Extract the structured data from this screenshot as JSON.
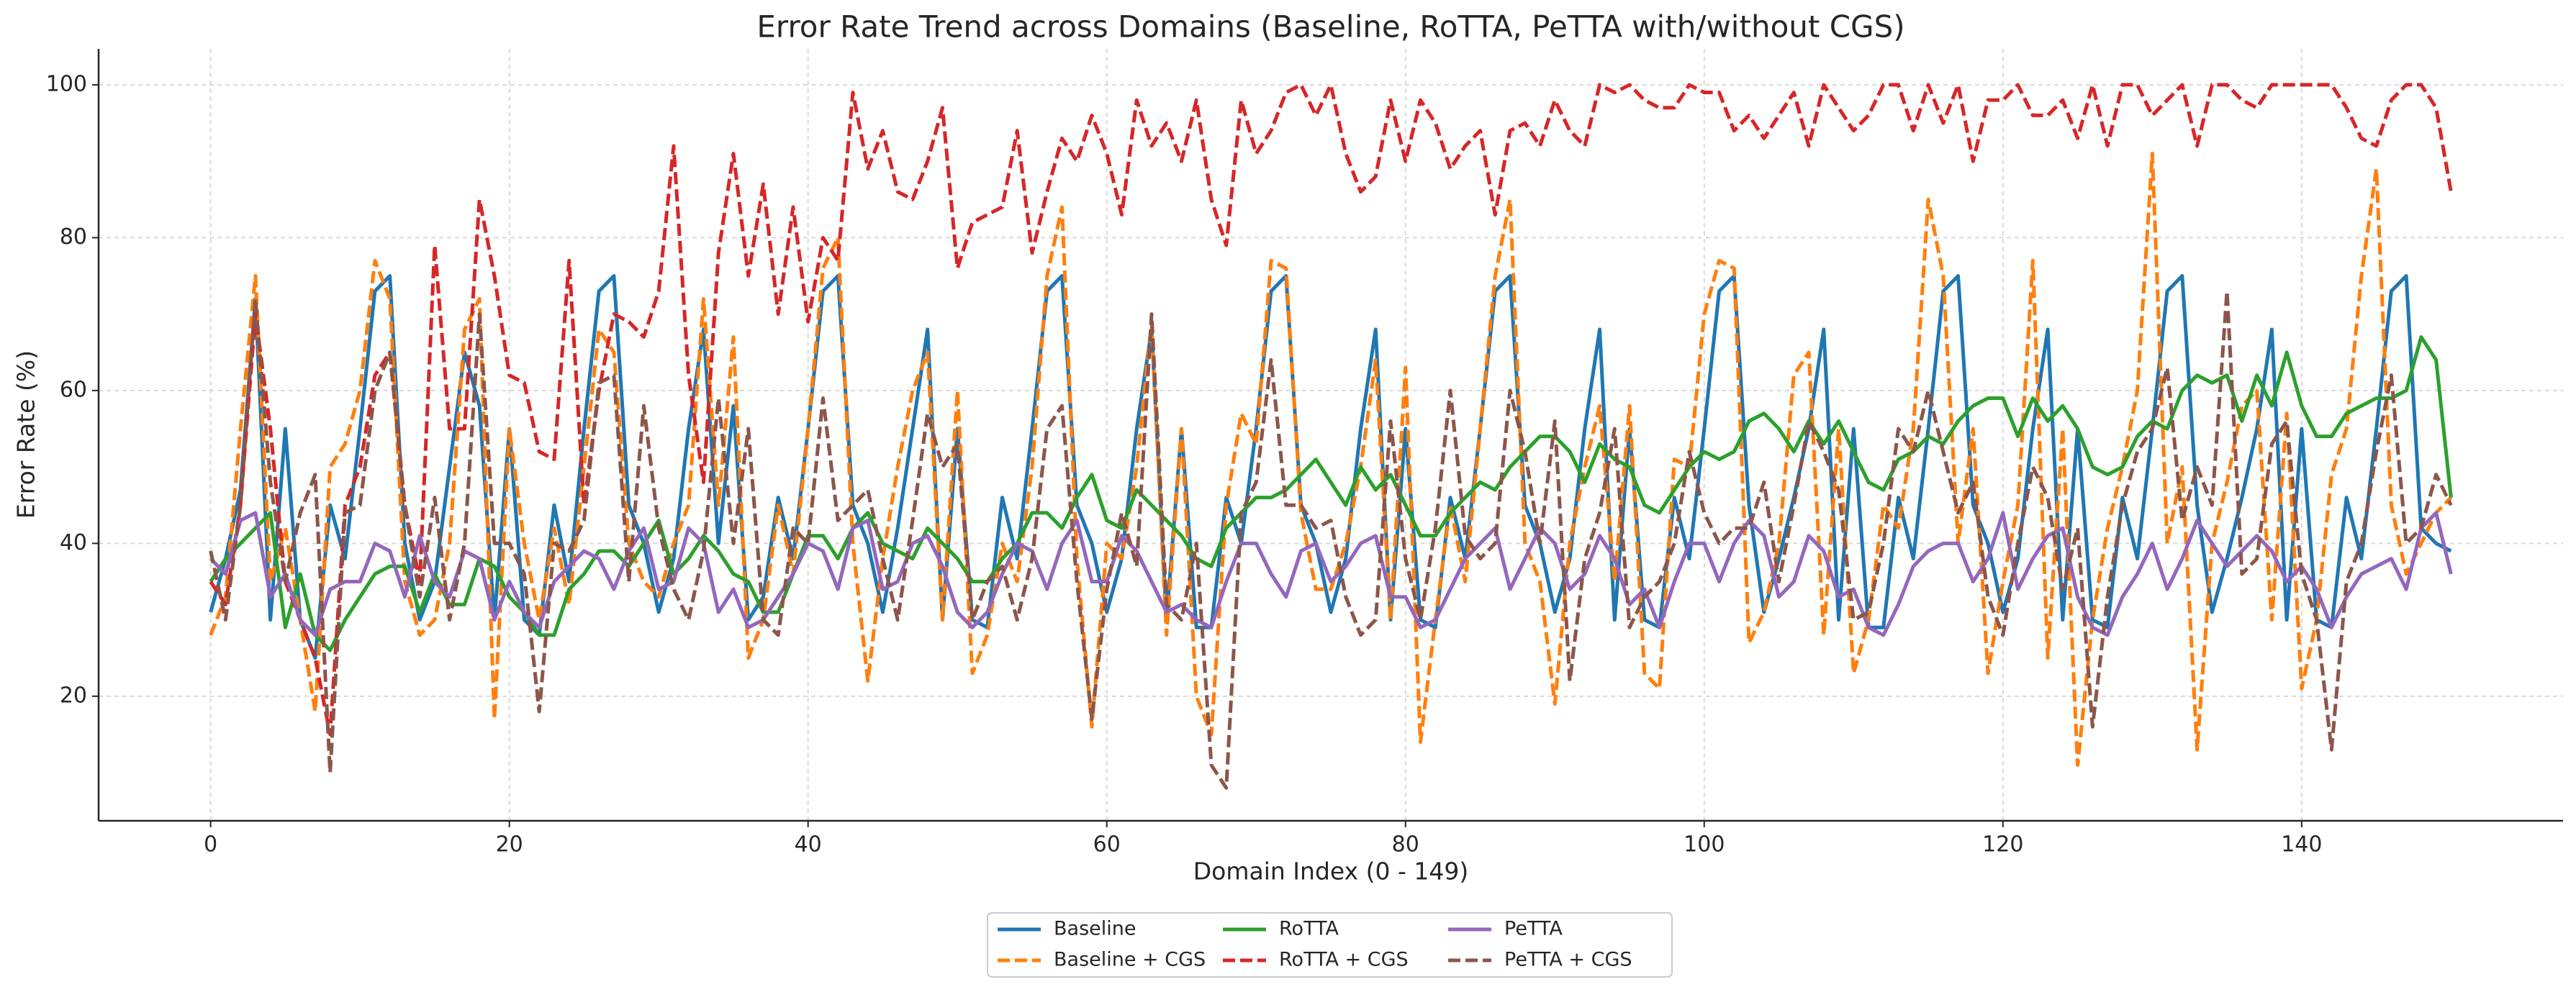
{
  "chart_data": {
    "type": "line",
    "title": "Error Rate Trend across Domains (Baseline, RoTTA, PeTTA with/without CGS)",
    "x_label": "Domain Index (0 - 149)",
    "y_label": "Error Rate (%)",
    "xlim": [
      -7.5,
      157.5
    ],
    "ylim": [
      3.7,
      104.7
    ],
    "xticks": [
      0,
      20,
      40,
      60,
      80,
      100,
      120,
      140
    ],
    "yticks": [
      20,
      40,
      60,
      80,
      100
    ],
    "grid": true,
    "legend_position": "bottom",
    "x": [
      0,
      1,
      2,
      3,
      4,
      5,
      6,
      7,
      8,
      9,
      10,
      11,
      12,
      13,
      14,
      15,
      16,
      17,
      18,
      19,
      20,
      21,
      22,
      23,
      24,
      25,
      26,
      27,
      28,
      29,
      30,
      31,
      32,
      33,
      34,
      35,
      36,
      37,
      38,
      39,
      40,
      41,
      42,
      43,
      44,
      45,
      46,
      47,
      48,
      49,
      50,
      51,
      52,
      53,
      54,
      55,
      56,
      57,
      58,
      59,
      60,
      61,
      62,
      63,
      64,
      65,
      66,
      67,
      68,
      69,
      70,
      71,
      72,
      73,
      74,
      75,
      76,
      77,
      78,
      79,
      80,
      81,
      82,
      83,
      84,
      85,
      86,
      87,
      88,
      89,
      90,
      91,
      92,
      93,
      94,
      95,
      96,
      97,
      98,
      99,
      100,
      101,
      102,
      103,
      104,
      105,
      106,
      107,
      108,
      109,
      110,
      111,
      112,
      113,
      114,
      115,
      116,
      117,
      118,
      119,
      120,
      121,
      122,
      123,
      124,
      125,
      126,
      127,
      128,
      129,
      130,
      131,
      132,
      133,
      134,
      135,
      136,
      137,
      138,
      139,
      140,
      141,
      142,
      143,
      144,
      145,
      146,
      147,
      148,
      149,
      150
    ],
    "series": [
      {
        "name": "Baseline",
        "color": "#1f77b4",
        "linestyle": "solid",
        "values": [
          31,
          38,
          47,
          72,
          30,
          55,
          30,
          25,
          45,
          38,
          55,
          73,
          75,
          40,
          30,
          35,
          50,
          65,
          58,
          30,
          55,
          30,
          28,
          45,
          35,
          55,
          73,
          75,
          45,
          40,
          31,
          38,
          55,
          68,
          40,
          58,
          30,
          33,
          46,
          38,
          55,
          73,
          75,
          45,
          40,
          31,
          42,
          55,
          68,
          30,
          55,
          30,
          29,
          46,
          38,
          55,
          73,
          75,
          45,
          40,
          31,
          38,
          55,
          68,
          30,
          55,
          29,
          29,
          46,
          40,
          55,
          73,
          75,
          45,
          40,
          31,
          38,
          55,
          68,
          30,
          55,
          30,
          29,
          46,
          38,
          55,
          73,
          75,
          45,
          40,
          31,
          38,
          55,
          68,
          30,
          55,
          30,
          29,
          46,
          38,
          55,
          73,
          75,
          45,
          31,
          38,
          46,
          55,
          68,
          30,
          55,
          29,
          29,
          46,
          38,
          55,
          73,
          75,
          45,
          40,
          31,
          38,
          55,
          68,
          30,
          55,
          30,
          29,
          46,
          38,
          55,
          73,
          75,
          45,
          31,
          38,
          46,
          55,
          68,
          30,
          55,
          30,
          29,
          46,
          38,
          55,
          73,
          75,
          42,
          40,
          39
        ]
      },
      {
        "name": "Baseline + CGS",
        "color": "#ff7f0e",
        "linestyle": "dashed",
        "values": [
          28,
          33,
          55,
          75,
          35,
          42,
          30,
          18,
          50,
          53,
          60,
          77,
          72,
          35,
          28,
          30,
          40,
          68,
          72,
          17,
          55,
          40,
          30,
          42,
          32,
          50,
          68,
          65,
          40,
          35,
          33,
          40,
          45,
          72,
          45,
          67,
          25,
          30,
          45,
          36,
          55,
          76,
          80,
          40,
          22,
          38,
          50,
          60,
          65,
          30,
          60,
          23,
          28,
          40,
          35,
          50,
          75,
          84,
          38,
          16,
          40,
          38,
          50,
          69,
          28,
          55,
          20,
          15,
          45,
          57,
          53,
          77,
          76,
          44,
          34,
          34,
          40,
          50,
          64,
          30,
          63,
          14,
          30,
          45,
          35,
          55,
          75,
          85,
          40,
          35,
          19,
          40,
          50,
          58,
          35,
          58,
          23,
          21,
          51,
          50,
          70,
          77,
          76,
          27,
          31,
          40,
          62,
          65,
          28,
          55,
          23,
          30,
          45,
          42,
          55,
          85,
          75,
          40,
          55,
          23,
          35,
          45,
          77,
          25,
          55,
          11,
          30,
          42,
          50,
          60,
          91,
          40,
          50,
          13,
          40,
          48,
          58,
          60,
          30,
          57,
          21,
          30,
          49,
          55,
          75,
          89,
          45,
          36,
          40,
          44,
          46
        ]
      },
      {
        "name": "RoTTA",
        "color": "#2ca02c",
        "linestyle": "solid",
        "values": [
          35,
          38,
          40,
          42,
          44,
          29,
          36,
          28,
          26,
          30,
          33,
          36,
          37,
          37,
          31,
          36,
          32,
          32,
          38,
          37,
          33,
          31,
          28,
          28,
          34,
          36,
          39,
          39,
          37,
          40,
          43,
          36,
          38,
          41,
          39,
          36,
          35,
          31,
          31,
          36,
          41,
          41,
          38,
          42,
          44,
          40,
          39,
          38,
          42,
          40,
          38,
          35,
          35,
          38,
          40,
          44,
          44,
          42,
          46,
          49,
          43,
          42,
          47,
          45,
          43,
          41,
          38,
          37,
          42,
          44,
          46,
          46,
          47,
          49,
          51,
          48,
          45,
          50,
          47,
          49,
          45,
          41,
          41,
          44,
          46,
          48,
          47,
          50,
          52,
          54,
          54,
          52,
          48,
          53,
          51,
          50,
          45,
          44,
          47,
          50,
          52,
          51,
          52,
          56,
          57,
          55,
          52,
          56,
          53,
          56,
          52,
          48,
          47,
          51,
          52,
          54,
          53,
          56,
          58,
          59,
          59,
          54,
          59,
          56,
          58,
          55,
          50,
          49,
          50,
          54,
          56,
          55,
          60,
          62,
          61,
          62,
          56,
          62,
          58,
          65,
          58,
          54,
          54,
          57,
          58,
          59,
          59,
          60,
          67,
          64,
          46
        ]
      },
      {
        "name": "RoTTA + CGS",
        "color": "#d62728",
        "linestyle": "dashed",
        "values": [
          35,
          32,
          45,
          70,
          55,
          35,
          30,
          25,
          15,
          45,
          50,
          62,
          65,
          45,
          35,
          79,
          55,
          55,
          85,
          75,
          62,
          61,
          52,
          51,
          77,
          45,
          60,
          70,
          69,
          67,
          73,
          92,
          62,
          48,
          78,
          91,
          75,
          87,
          70,
          84,
          69,
          80,
          77,
          99,
          89,
          94,
          86,
          85,
          90,
          97,
          76,
          82,
          83,
          84,
          94,
          78,
          86,
          93,
          90,
          96,
          91,
          83,
          98,
          92,
          95,
          90,
          98,
          85,
          79,
          98,
          91,
          94,
          99,
          100,
          96,
          100,
          91,
          86,
          88,
          98,
          90,
          98,
          95,
          89,
          92,
          94,
          83,
          94,
          95,
          92,
          98,
          94,
          92,
          100,
          99,
          100,
          98,
          97,
          97,
          100,
          99,
          99,
          94,
          96,
          93,
          96,
          99,
          92,
          100,
          97,
          94,
          96,
          100,
          100,
          94,
          100,
          95,
          100,
          90,
          98,
          98,
          100,
          96,
          96,
          98,
          93,
          100,
          92,
          100,
          100,
          96,
          98,
          100,
          92,
          100,
          100,
          98,
          97,
          100,
          100,
          100,
          100,
          100,
          97,
          93,
          92,
          98,
          100,
          100,
          97,
          86
        ]
      },
      {
        "name": "PeTTA",
        "color": "#9467bd",
        "linestyle": "solid",
        "values": [
          38,
          36,
          43,
          44,
          33,
          36,
          30,
          28,
          34,
          35,
          35,
          40,
          39,
          33,
          41,
          35,
          33,
          39,
          38,
          30,
          35,
          31,
          29,
          35,
          37,
          39,
          38,
          34,
          39,
          42,
          34,
          35,
          42,
          40,
          31,
          34,
          29,
          30,
          33,
          36,
          40,
          39,
          34,
          42,
          43,
          34,
          35,
          40,
          41,
          37,
          31,
          29,
          31,
          36,
          40,
          39,
          34,
          40,
          43,
          35,
          35,
          41,
          39,
          35,
          31,
          32,
          30,
          29,
          35,
          40,
          40,
          36,
          33,
          39,
          40,
          35,
          37,
          40,
          41,
          33,
          33,
          29,
          30,
          34,
          38,
          40,
          42,
          34,
          38,
          42,
          40,
          34,
          36,
          41,
          38,
          32,
          34,
          29,
          35,
          40,
          40,
          35,
          40,
          43,
          41,
          33,
          35,
          41,
          39,
          33,
          34,
          29,
          28,
          32,
          37,
          39,
          40,
          40,
          35,
          38,
          44,
          34,
          38,
          41,
          42,
          33,
          29,
          28,
          33,
          36,
          40,
          34,
          38,
          43,
          40,
          37,
          39,
          41,
          39,
          35,
          37,
          34,
          29,
          33,
          36,
          37,
          38,
          34,
          42,
          44,
          36
        ]
      },
      {
        "name": "PeTTA + CGS",
        "color": "#8c564b",
        "linestyle": "dashed",
        "values": [
          39,
          30,
          45,
          72,
          48,
          35,
          44,
          49,
          10,
          44,
          45,
          60,
          65,
          45,
          33,
          46,
          30,
          40,
          70,
          40,
          40,
          36,
          18,
          40,
          39,
          43,
          61,
          62,
          35,
          58,
          42,
          34,
          30,
          39,
          59,
          40,
          55,
          30,
          28,
          42,
          40,
          59,
          43,
          45,
          47,
          38,
          30,
          43,
          57,
          50,
          53,
          30,
          35,
          37,
          30,
          38,
          55,
          58,
          35,
          17,
          34,
          44,
          37,
          70,
          32,
          30,
          40,
          11,
          8,
          44,
          48,
          64,
          45,
          45,
          42,
          43,
          33,
          28,
          30,
          56,
          38,
          30,
          42,
          60,
          41,
          38,
          40,
          60,
          52,
          40,
          56,
          22,
          38,
          44,
          55,
          29,
          33,
          35,
          40,
          52,
          44,
          40,
          42,
          42,
          48,
          35,
          45,
          56,
          52,
          47,
          30,
          31,
          40,
          55,
          52,
          60,
          52,
          44,
          48,
          33,
          28,
          40,
          50,
          46,
          34,
          42,
          16,
          33,
          45,
          52,
          55,
          63,
          43,
          50,
          45,
          73,
          36,
          38,
          53,
          56,
          36,
          30,
          13,
          35,
          40,
          52,
          62,
          40,
          42,
          49,
          45
        ]
      }
    ]
  }
}
